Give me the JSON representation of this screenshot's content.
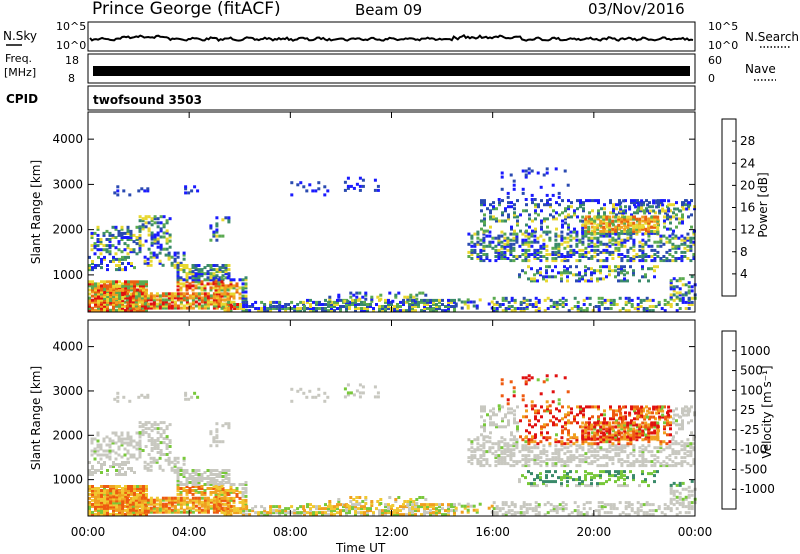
{
  "header": {
    "station": "Prince George (fitACF)",
    "beam": "Beam 09",
    "date": "03/Nov/2016"
  },
  "strips": {
    "nsky_label": "N.Sky",
    "nsky_ticks": [
      "10^5",
      "10^0"
    ],
    "nsearch_label": "N.Search",
    "nsearch_ticks": [
      "10^5",
      "10^0"
    ],
    "freq_label": "Freq.",
    "freq_unit": "[MHz]",
    "freq_ticks": [
      "18",
      "8"
    ],
    "nave_label": "Nave",
    "nave_ticks": [
      "60",
      "0"
    ],
    "cpid_label": "CPID",
    "cpid_value": "twofsound 3503"
  },
  "colors": {
    "power_scale": [
      "#1a1aff",
      "#2a4ab0",
      "#3a8a6a",
      "#5aaa50",
      "#e8d830",
      "#f0a020",
      "#e86010",
      "#e01010"
    ],
    "velocity_scale": [
      "#e01010",
      "#ee5a10",
      "#f0a020",
      "#f0c830",
      "#c8c8c0",
      "#78c83a",
      "#3a8a6a",
      "#2a5ab0",
      "#1a2aa0"
    ]
  },
  "chart_data": [
    {
      "type": "heatmap",
      "name": "power-panel",
      "xlabel": "Time UT",
      "ylabel": "Slant Range [km]",
      "x_ticks": [
        "00:00",
        "04:00",
        "08:00",
        "12:00",
        "16:00",
        "20:00",
        "00:00"
      ],
      "xlim_hours": [
        0,
        24
      ],
      "ylim": [
        180,
        4600
      ],
      "y_ticks": [
        1000,
        2000,
        3000,
        4000
      ],
      "colorbar_label": "Power [dB]",
      "colorbar_ticks": [
        "28",
        "24",
        "20",
        "16",
        "12",
        "8",
        "4"
      ],
      "colorbar_range": [
        0,
        30
      ]
    },
    {
      "type": "heatmap",
      "name": "velocity-panel",
      "xlabel": "Time UT",
      "ylabel": "Slant Range [km]",
      "x_ticks": [
        "00:00",
        "04:00",
        "08:00",
        "12:00",
        "16:00",
        "20:00",
        "00:00"
      ],
      "xlim_hours": [
        0,
        24
      ],
      "ylim": [
        180,
        4600
      ],
      "y_ticks": [
        1000,
        2000,
        3000,
        4000
      ],
      "colorbar_label": "Velocity [m s⁻¹]",
      "colorbar_ticks": [
        "1000",
        "500",
        "100",
        "25",
        "-25",
        "-100",
        "-500",
        "-1000"
      ]
    }
  ]
}
